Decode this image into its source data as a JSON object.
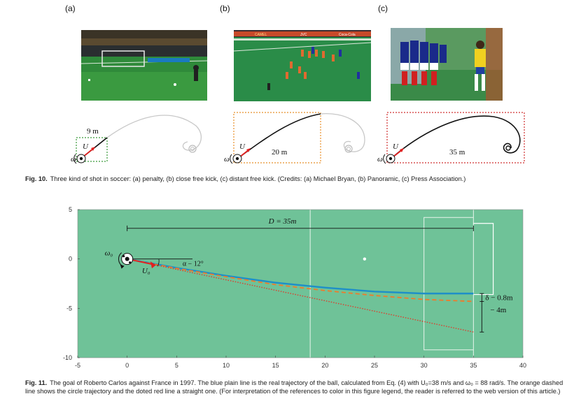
{
  "fig10": {
    "panels": [
      {
        "label": "(a)",
        "distance": "9 m",
        "omega": "ω",
        "velocity": "U",
        "photo_desc": "penalty kick photo",
        "box_color": "#3a9a3a"
      },
      {
        "label": "(b)",
        "distance": "20 m",
        "omega": "ω",
        "velocity": "U",
        "photo_desc": "close free kick photo",
        "box_color": "#e8902a"
      },
      {
        "label": "(c)",
        "distance": "35 m",
        "omega": "ω",
        "velocity": "U",
        "photo_desc": "distant free kick photo",
        "box_color": "#d03030"
      }
    ],
    "caption_label": "Fig. 10.",
    "caption_text": "Three kind of shot in soccer: (a) penalty, (b) close free kick, (c) distant free kick. (Credits: (a) Michael Bryan, (b) Panoramic, (c) Press Association.)",
    "ad_texts": [
      "CAMEL",
      "JVC",
      "Coca-Cola"
    ]
  },
  "fig11": {
    "caption_label": "Fig. 11.",
    "caption_text": "The goal of Roberto Carlos against France in 1997. The blue plain line is the real trajectory of the ball, calculated from Eq. (4) with U₀=38 m/s and ω₀ = 88 rad/s. The orange dashed line shows the circle trajectory and the doted red line a straight one. (For interpretation of the references to color in this figure legend, the reader is referred to the web version of this article.)",
    "annotations": {
      "distance": "D = 35m",
      "omega": "ω₀",
      "velocity": "U₀",
      "angle": "α − 12°",
      "deviation_small": "δ − 0.8m",
      "deviation_large": "− 4m"
    },
    "colors": {
      "field": "#6fc298",
      "real": "#1e8fc8",
      "circle": "#f07a2a",
      "straight": "#e03a2a"
    }
  },
  "chart_data": {
    "type": "line",
    "title": "",
    "xlabel": "",
    "ylabel": "",
    "xlim": [
      -5,
      40
    ],
    "ylim": [
      -10,
      5
    ],
    "xticks": [
      -5,
      0,
      5,
      10,
      15,
      20,
      25,
      30,
      35,
      40
    ],
    "yticks": [
      5,
      0,
      -5,
      -10
    ],
    "series": [
      {
        "name": "real trajectory",
        "style": "solid",
        "color": "#1e8fc8",
        "x": [
          0,
          5,
          10,
          15,
          20,
          25,
          30,
          35
        ],
        "y": [
          0,
          -0.9,
          -1.7,
          -2.4,
          -2.9,
          -3.3,
          -3.5,
          -3.5
        ]
      },
      {
        "name": "circle trajectory",
        "style": "dashed",
        "color": "#f07a2a",
        "x": [
          0,
          5,
          10,
          15,
          20,
          25,
          30,
          35
        ],
        "y": [
          0,
          -0.95,
          -1.8,
          -2.6,
          -3.2,
          -3.7,
          -4.1,
          -4.3
        ]
      },
      {
        "name": "straight line",
        "style": "dotted",
        "color": "#e03a2a",
        "x": [
          0,
          35
        ],
        "y": [
          0,
          -7.4
        ]
      }
    ],
    "field_lines_x": [
      18.5,
      30,
      35
    ],
    "penalty_spot": [
      24,
      0
    ]
  }
}
